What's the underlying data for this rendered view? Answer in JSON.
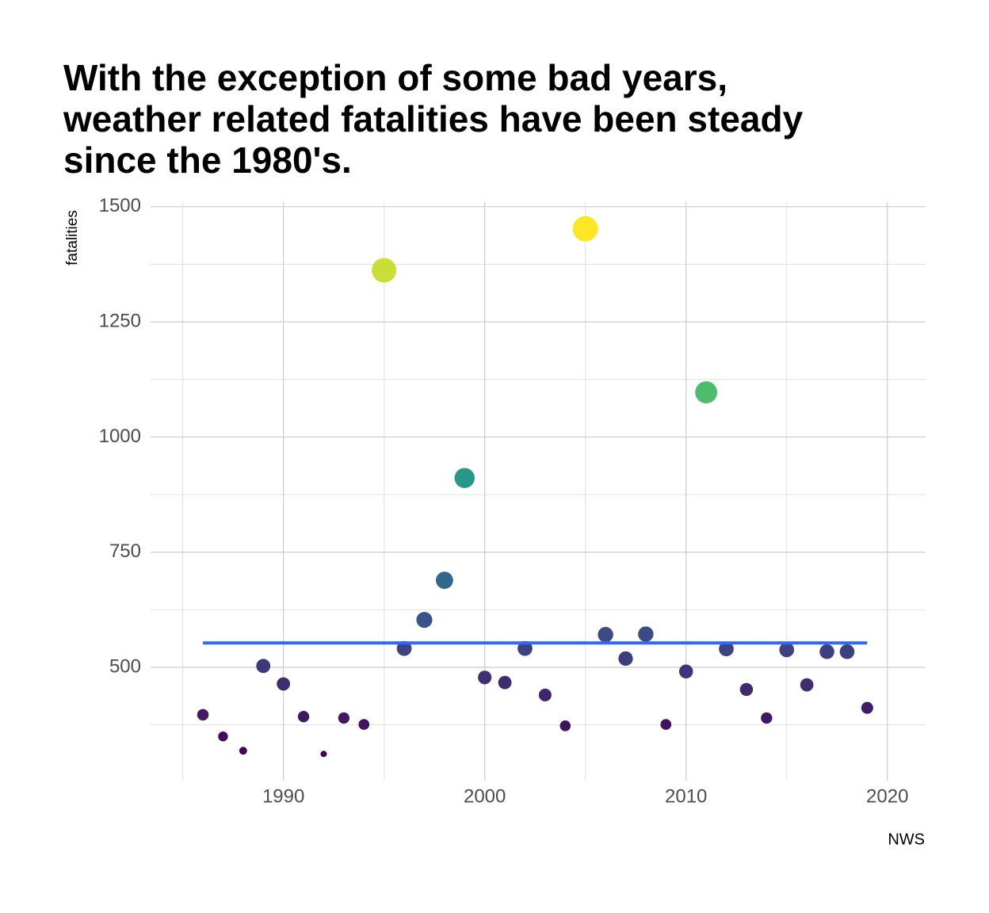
{
  "chart_data": {
    "type": "scatter",
    "title": "With the exception of some bad years, weather related fatalities have been steady since the 1980's.",
    "y_label": "fatalities",
    "caption": "NWS",
    "x": [
      1986,
      1987,
      1988,
      1989,
      1990,
      1991,
      1992,
      1993,
      1994,
      1995,
      1996,
      1997,
      1998,
      1999,
      2000,
      2001,
      2002,
      2003,
      2004,
      2005,
      2006,
      2007,
      2008,
      2009,
      2010,
      2011,
      2012,
      2013,
      2014,
      2015,
      2016,
      2017,
      2018,
      2019
    ],
    "values": [
      397,
      350,
      319,
      503,
      464,
      393,
      312,
      390,
      376,
      1362,
      541,
      603,
      689,
      911,
      478,
      467,
      541,
      440,
      373,
      1452,
      571,
      519,
      572,
      376,
      491,
      1097,
      540,
      452,
      390,
      538,
      462,
      534,
      534,
      412
    ],
    "colormap": [
      "#440154",
      "#3b528b",
      "#21918c",
      "#5ec962",
      "#fde725"
    ],
    "trend": {
      "x": [
        1986,
        2019
      ],
      "values": [
        553,
        553
      ],
      "color": "#3366ff"
    },
    "xlim": [
      1983.4,
      2021.9
    ],
    "ylim": [
      254,
      1510
    ],
    "xticks": [
      1990,
      2000,
      2010,
      2020
    ],
    "yticks": [
      500,
      750,
      1000,
      1250,
      1500
    ],
    "xminor": [
      1985,
      1995,
      2005,
      2015
    ],
    "yminor": [
      375,
      625,
      875,
      1125,
      1375
    ],
    "grid": true
  }
}
